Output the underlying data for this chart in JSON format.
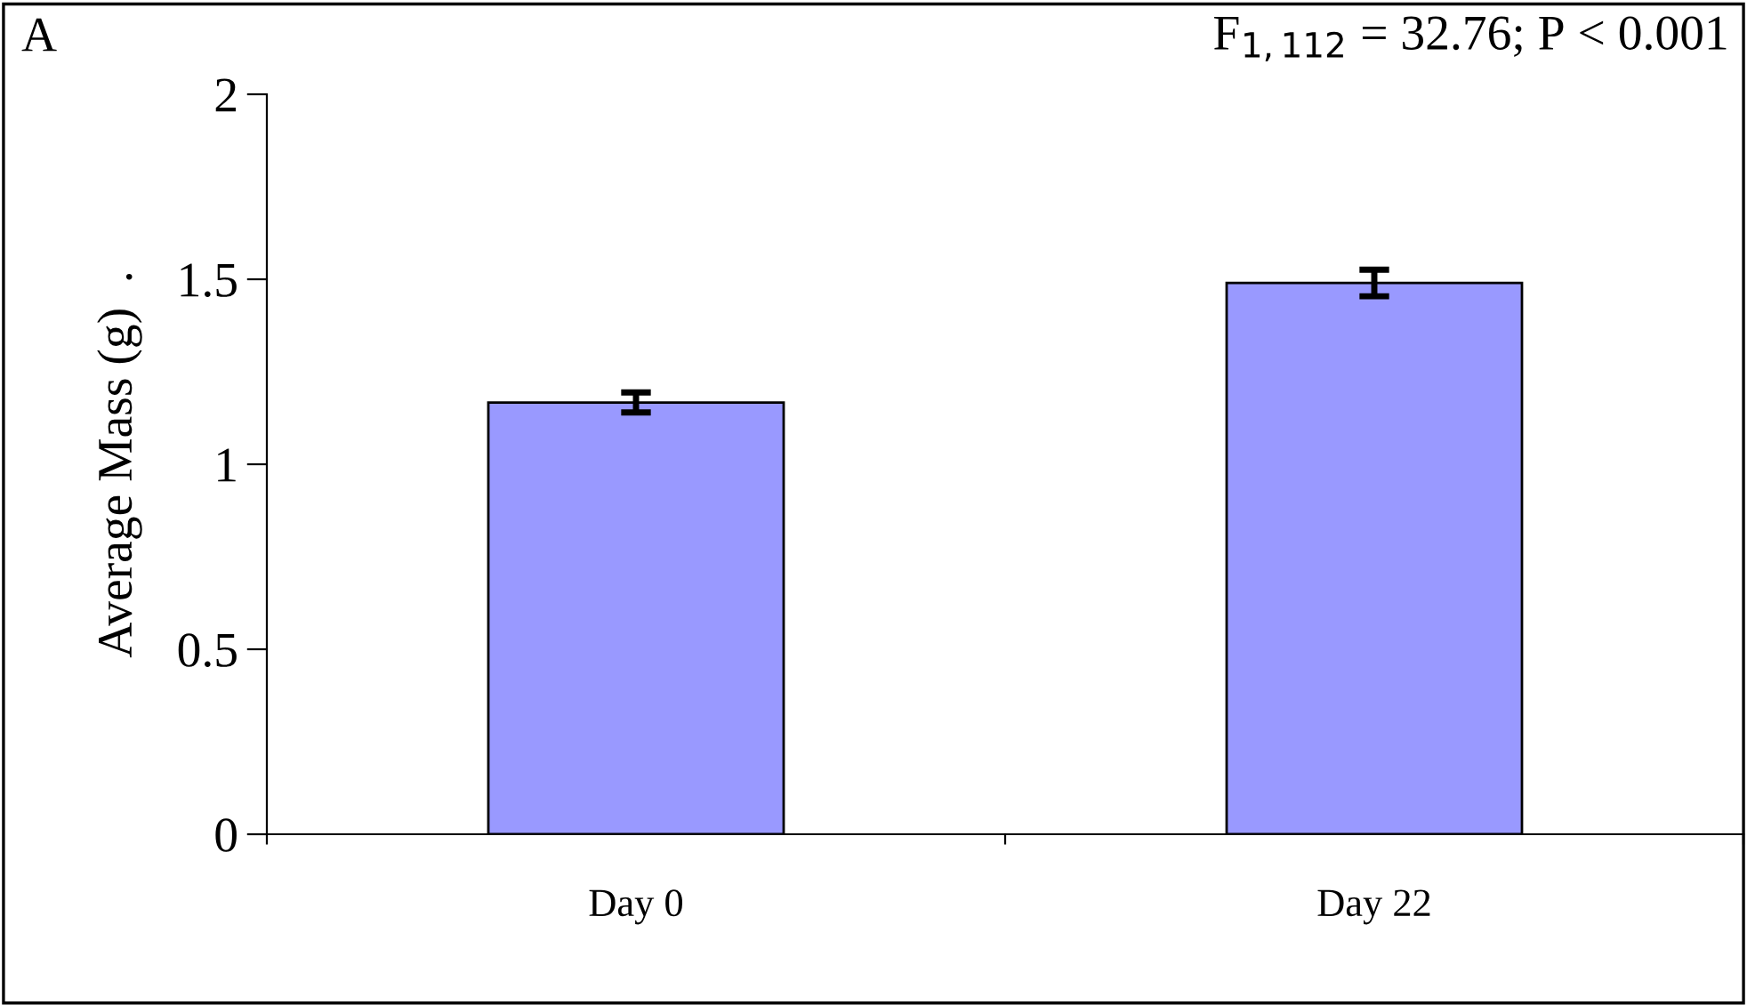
{
  "chart_data": {
    "type": "bar",
    "categories": [
      "Day 0",
      "Day 22"
    ],
    "values": [
      1.167,
      1.49
    ],
    "errors": [
      0.027,
      0.036
    ],
    "color": "#9999ff",
    "ylabel": "Average Mass (g)  .",
    "ylim": [
      0,
      2
    ],
    "yticks": [
      0,
      0.5,
      1,
      1.5,
      2
    ],
    "grid": false,
    "annotations": [
      "A",
      "F$_{1,112}$ = 32.76; P < 0.001"
    ]
  }
}
